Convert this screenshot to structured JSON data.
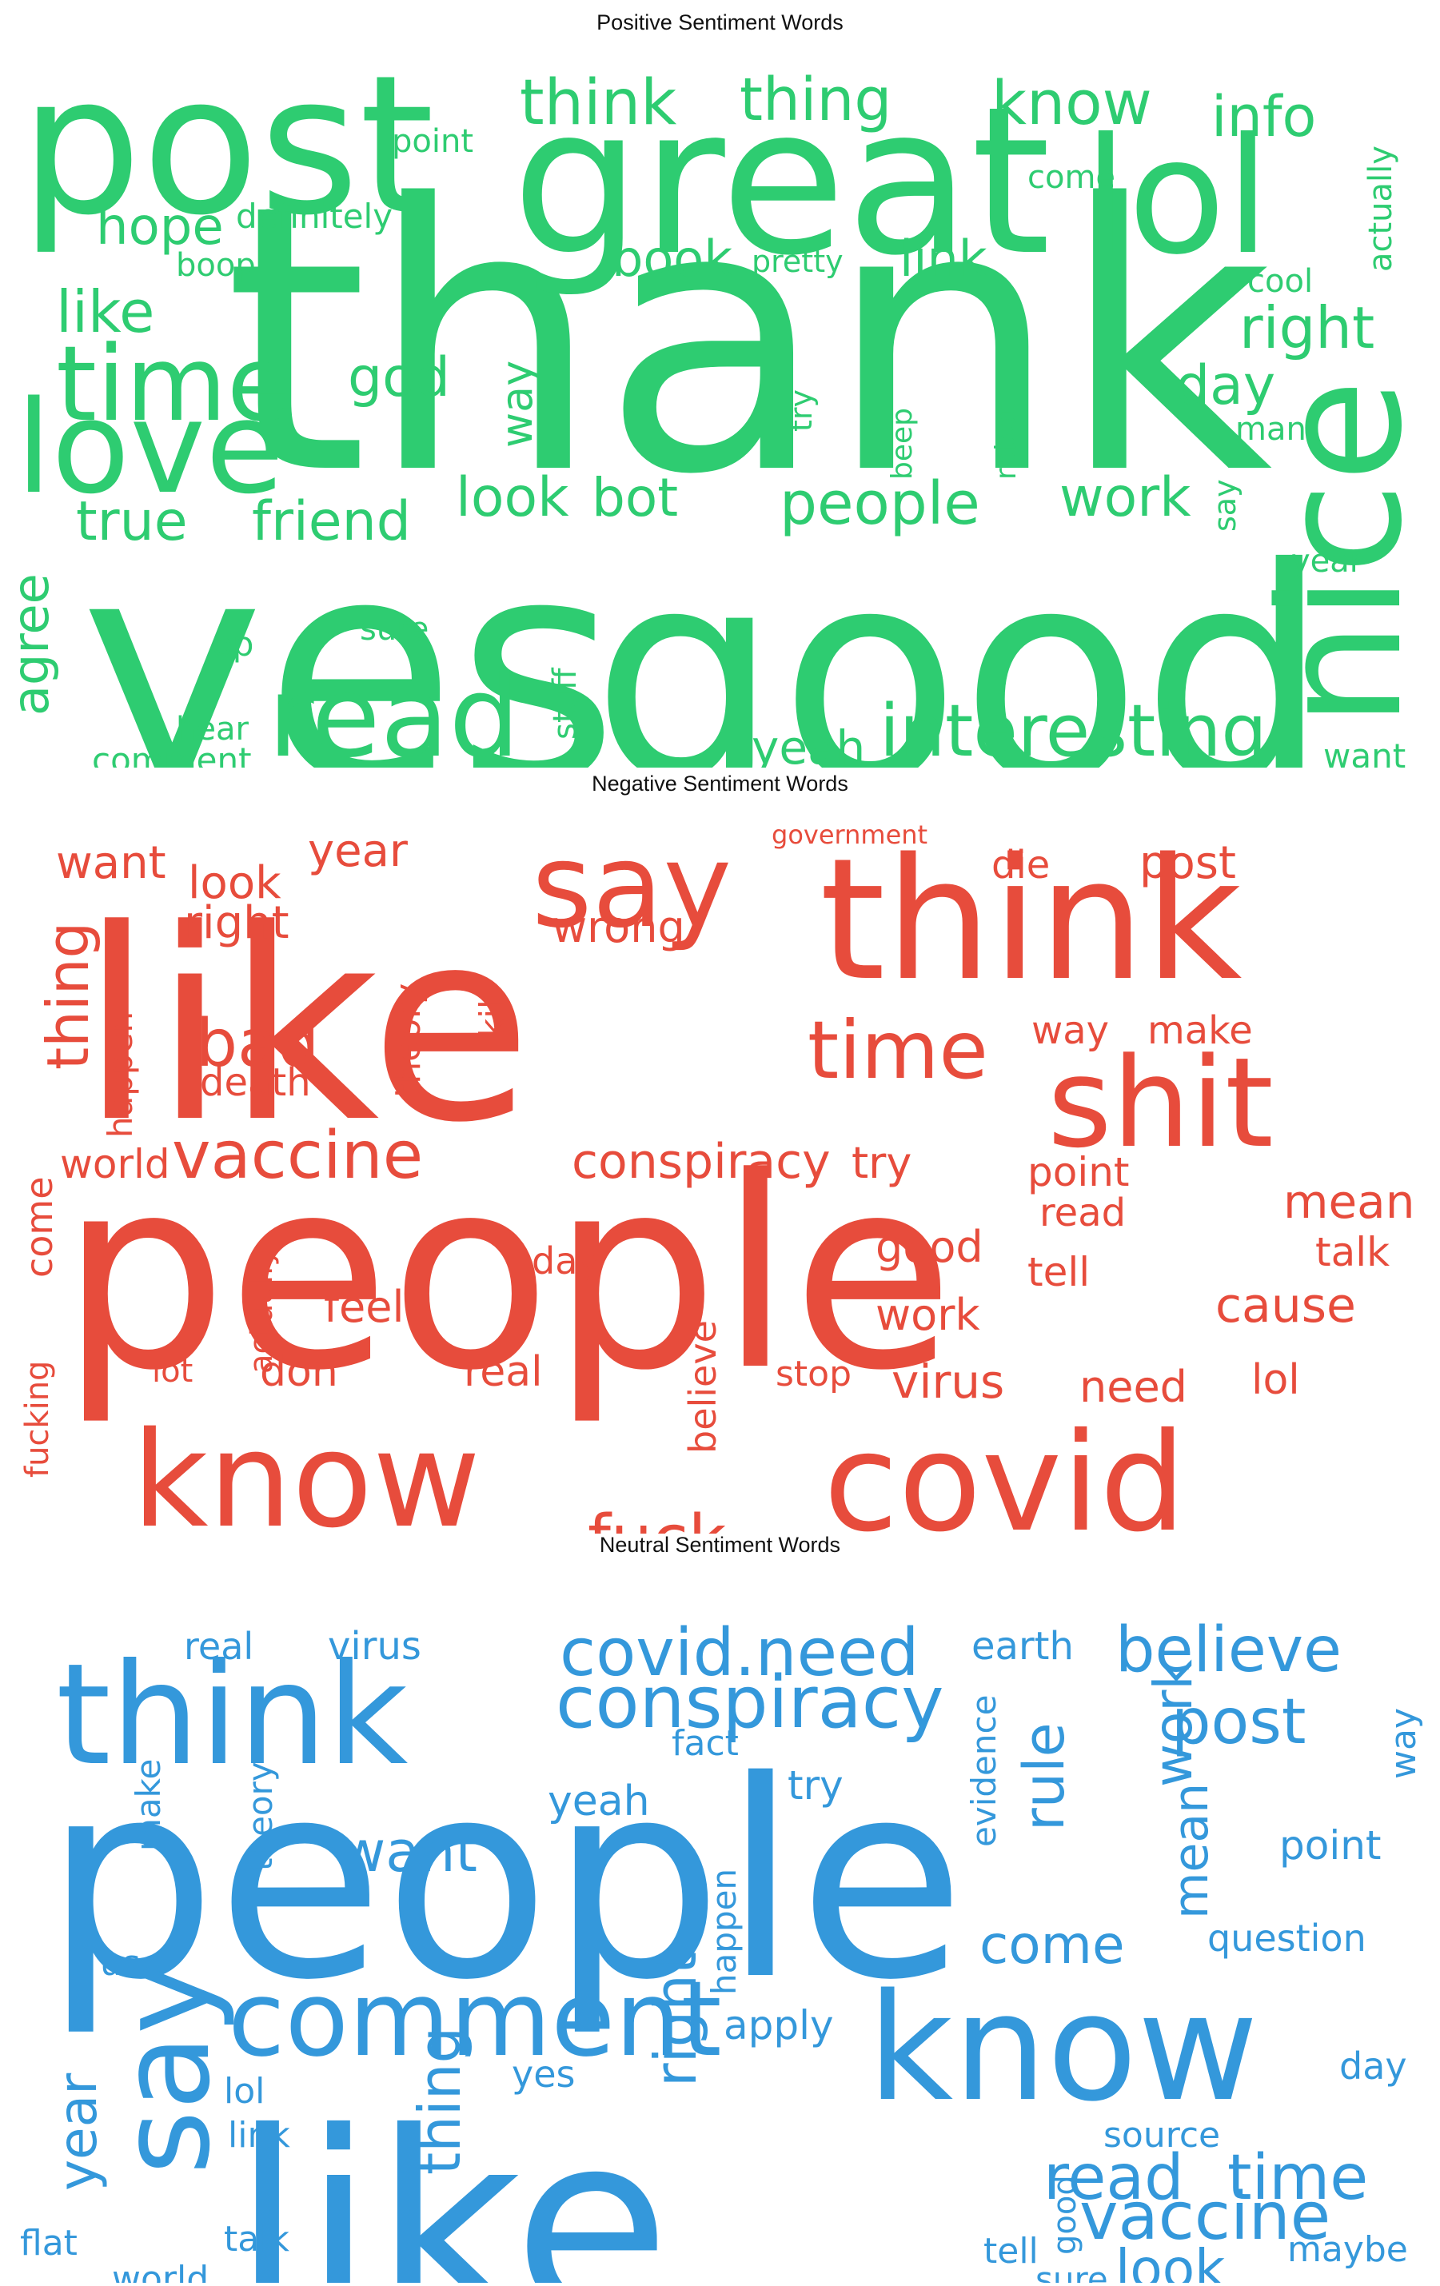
{
  "colors": {
    "positive": "#2ecc71",
    "negative": "#e74c3c",
    "neutral": "#3498db"
  },
  "chart_data": [
    {
      "type": "wordcloud",
      "title": "Positive Sentiment Words",
      "color": "#2ecc71",
      "words": [
        {
          "text": "thank",
          "weight": 100
        },
        {
          "text": "good",
          "weight": 90
        },
        {
          "text": "yes",
          "weight": 88
        },
        {
          "text": "great",
          "weight": 62
        },
        {
          "text": "post",
          "weight": 58
        },
        {
          "text": "nice",
          "weight": 48
        },
        {
          "text": "lol",
          "weight": 44
        },
        {
          "text": "love",
          "weight": 36
        },
        {
          "text": "read",
          "weight": 34
        },
        {
          "text": "time",
          "weight": 30
        },
        {
          "text": "interesting",
          "weight": 22
        },
        {
          "text": "think",
          "weight": 19
        },
        {
          "text": "know",
          "weight": 19
        },
        {
          "text": "thing",
          "weight": 18
        },
        {
          "text": "people",
          "weight": 18
        },
        {
          "text": "like",
          "weight": 17
        },
        {
          "text": "right",
          "weight": 17
        },
        {
          "text": "info",
          "weight": 16
        },
        {
          "text": "true",
          "weight": 16
        },
        {
          "text": "friend",
          "weight": 16
        },
        {
          "text": "god",
          "weight": 16
        },
        {
          "text": "day",
          "weight": 16
        },
        {
          "text": "work",
          "weight": 16
        },
        {
          "text": "look",
          "weight": 16
        },
        {
          "text": "bot",
          "weight": 16
        },
        {
          "text": "hope",
          "weight": 15
        },
        {
          "text": "agree",
          "weight": 15
        },
        {
          "text": "book",
          "weight": 15
        },
        {
          "text": "link",
          "weight": 15
        },
        {
          "text": "yeah",
          "weight": 14
        },
        {
          "text": "way",
          "weight": 12
        },
        {
          "text": "definitely",
          "weight": 10
        },
        {
          "text": "come",
          "weight": 10
        },
        {
          "text": "actually",
          "weight": 10
        },
        {
          "text": "cool",
          "weight": 10
        },
        {
          "text": "man",
          "weight": 10
        },
        {
          "text": "year",
          "weight": 10
        },
        {
          "text": "point",
          "weight": 10
        },
        {
          "text": "boop",
          "weight": 9
        },
        {
          "text": "pretty",
          "weight": 9
        },
        {
          "text": "try",
          "weight": 8
        },
        {
          "text": "beep",
          "weight": 8
        },
        {
          "text": "robot",
          "weight": 8
        },
        {
          "text": "say",
          "weight": 8
        },
        {
          "text": "sure",
          "weight": 9
        },
        {
          "text": "op",
          "weight": 9
        },
        {
          "text": "stuff",
          "weight": 9
        },
        {
          "text": "hear",
          "weight": 9
        },
        {
          "text": "comment",
          "weight": 9
        },
        {
          "text": "want",
          "weight": 9
        }
      ]
    },
    {
      "type": "wordcloud",
      "title": "Negative Sentiment Words",
      "color": "#e74c3c",
      "words": [
        {
          "text": "people",
          "weight": 100
        },
        {
          "text": "like",
          "weight": 92
        },
        {
          "text": "think",
          "weight": 60
        },
        {
          "text": "covid",
          "weight": 52
        },
        {
          "text": "know",
          "weight": 50
        },
        {
          "text": "shit",
          "weight": 44
        },
        {
          "text": "say",
          "weight": 40
        },
        {
          "text": "time",
          "weight": 30
        },
        {
          "text": "vaccine",
          "weight": 24
        },
        {
          "text": "bad",
          "weight": 24
        },
        {
          "text": "fuck",
          "weight": 24
        },
        {
          "text": "thing",
          "weight": 20
        },
        {
          "text": "conspiracy",
          "weight": 18
        },
        {
          "text": "cause",
          "weight": 16
        },
        {
          "text": "mean",
          "weight": 15
        },
        {
          "text": "virus",
          "weight": 15
        },
        {
          "text": "post",
          "weight": 15
        },
        {
          "text": "want",
          "weight": 15
        },
        {
          "text": "look",
          "weight": 15
        },
        {
          "text": "year",
          "weight": 15
        },
        {
          "text": "right",
          "weight": 15
        },
        {
          "text": "wrong",
          "weight": 15
        },
        {
          "text": "try",
          "weight": 14
        },
        {
          "text": "world",
          "weight": 14
        },
        {
          "text": "feel",
          "weight": 14
        },
        {
          "text": "work",
          "weight": 14
        },
        {
          "text": "good",
          "weight": 14
        },
        {
          "text": "point",
          "weight": 14
        },
        {
          "text": "talk",
          "weight": 14
        },
        {
          "text": "tell",
          "weight": 14
        },
        {
          "text": "need",
          "weight": 14
        },
        {
          "text": "lol",
          "weight": 14
        },
        {
          "text": "real",
          "weight": 14
        },
        {
          "text": "don",
          "weight": 14
        },
        {
          "text": "die",
          "weight": 13
        },
        {
          "text": "death",
          "weight": 13
        },
        {
          "text": "way",
          "weight": 13
        },
        {
          "text": "make",
          "weight": 13
        },
        {
          "text": "read",
          "weight": 13
        },
        {
          "text": "day",
          "weight": 13
        },
        {
          "text": "come",
          "weight": 13
        },
        {
          "text": "stop",
          "weight": 13
        },
        {
          "text": "believe",
          "weight": 13
        },
        {
          "text": "theory",
          "weight": 12
        },
        {
          "text": "happen",
          "weight": 12
        },
        {
          "text": "kill",
          "weight": 12
        },
        {
          "text": "actually",
          "weight": 12
        },
        {
          "text": "fucking",
          "weight": 12
        },
        {
          "text": "lot",
          "weight": 11
        },
        {
          "text": "government",
          "weight": 9
        }
      ]
    },
    {
      "type": "wordcloud",
      "title": "Neutral Sentiment Words",
      "color": "#3498db",
      "words": [
        {
          "text": "people",
          "weight": 100
        },
        {
          "text": "like",
          "weight": 98
        },
        {
          "text": "know",
          "weight": 55
        },
        {
          "text": "think",
          "weight": 52
        },
        {
          "text": "say",
          "weight": 44
        },
        {
          "text": "comment",
          "weight": 38
        },
        {
          "text": "conspiracy",
          "weight": 24
        },
        {
          "text": "vaccine",
          "weight": 22
        },
        {
          "text": "covid.need",
          "weight": 22
        },
        {
          "text": "believe",
          "weight": 21
        },
        {
          "text": "post",
          "weight": 21
        },
        {
          "text": "time",
          "weight": 21
        },
        {
          "text": "read",
          "weight": 21
        },
        {
          "text": "right",
          "weight": 20
        },
        {
          "text": "thing",
          "weight": 20
        },
        {
          "text": "rule",
          "weight": 18
        },
        {
          "text": "want",
          "weight": 18
        },
        {
          "text": "come",
          "weight": 18
        },
        {
          "text": "look",
          "weight": 18
        },
        {
          "text": "year",
          "weight": 18
        },
        {
          "text": "work",
          "weight": 17
        },
        {
          "text": "mean",
          "weight": 16
        },
        {
          "text": "real",
          "weight": 12
        },
        {
          "text": "virus",
          "weight": 12
        },
        {
          "text": "earth",
          "weight": 12
        },
        {
          "text": "way",
          "weight": 11
        },
        {
          "text": "fact",
          "weight": 11
        },
        {
          "text": "try",
          "weight": 12
        },
        {
          "text": "yeah",
          "weight": 12
        },
        {
          "text": "evidence",
          "weight": 11
        },
        {
          "text": "theory",
          "weight": 11
        },
        {
          "text": "make",
          "weight": 10
        },
        {
          "text": "happen",
          "weight": 11
        },
        {
          "text": "point",
          "weight": 12
        },
        {
          "text": "question",
          "weight": 12
        },
        {
          "text": "use",
          "weight": 11
        },
        {
          "text": "apply",
          "weight": 12
        },
        {
          "text": "yes",
          "weight": 11
        },
        {
          "text": "day",
          "weight": 11
        },
        {
          "text": "lol",
          "weight": 11
        },
        {
          "text": "link",
          "weight": 11
        },
        {
          "text": "source",
          "weight": 11
        },
        {
          "text": "tell",
          "weight": 11
        },
        {
          "text": "good",
          "weight": 11
        },
        {
          "text": "flat",
          "weight": 11
        },
        {
          "text": "talk",
          "weight": 11
        },
        {
          "text": "world",
          "weight": 11
        },
        {
          "text": "sure",
          "weight": 11
        },
        {
          "text": "maybe",
          "weight": 11
        }
      ]
    }
  ]
}
